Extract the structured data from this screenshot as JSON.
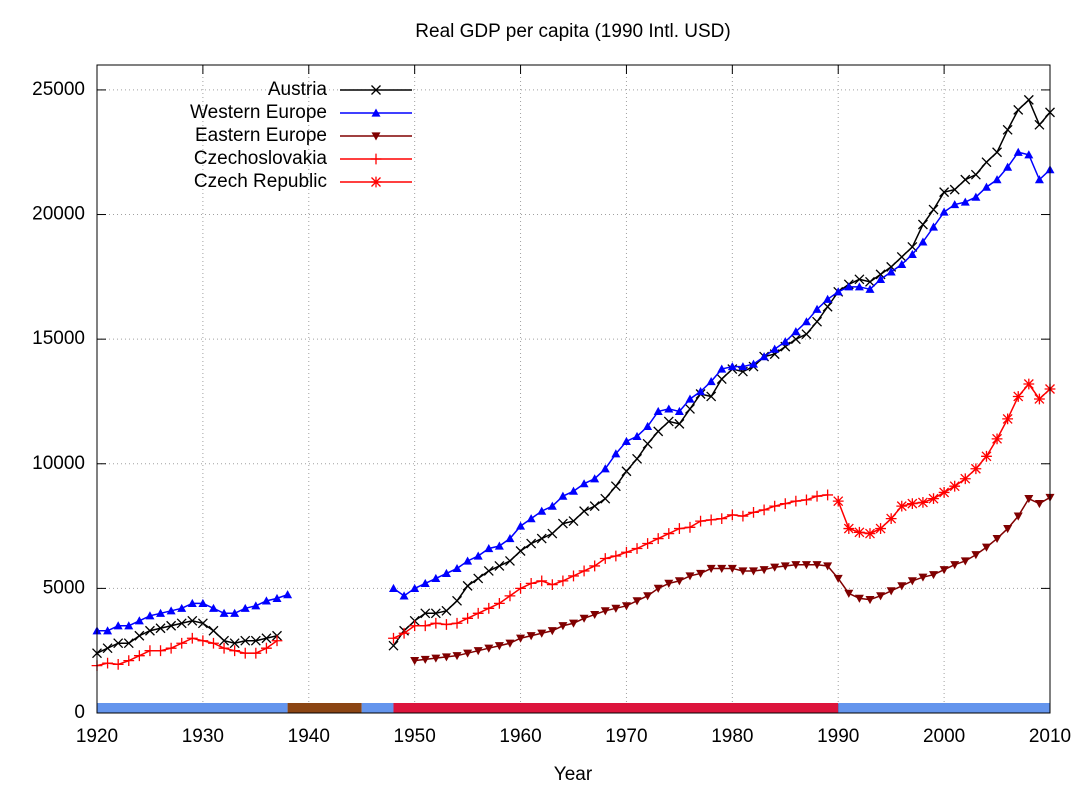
{
  "chart_data": {
    "type": "line",
    "title": "Real GDP per capita (1990 Intl. USD)",
    "x_label": "Year",
    "x": [
      1920,
      1921,
      1922,
      1923,
      1924,
      1925,
      1926,
      1927,
      1928,
      1929,
      1930,
      1931,
      1932,
      1933,
      1934,
      1935,
      1936,
      1937,
      1938,
      1939,
      1940,
      1941,
      1942,
      1943,
      1944,
      1945,
      1946,
      1947,
      1948,
      1949,
      1950,
      1951,
      1952,
      1953,
      1954,
      1955,
      1956,
      1957,
      1958,
      1959,
      1960,
      1961,
      1962,
      1963,
      1964,
      1965,
      1966,
      1967,
      1968,
      1969,
      1970,
      1971,
      1972,
      1973,
      1974,
      1975,
      1976,
      1977,
      1978,
      1979,
      1980,
      1981,
      1982,
      1983,
      1984,
      1985,
      1986,
      1987,
      1988,
      1989,
      1990,
      1991,
      1992,
      1993,
      1994,
      1995,
      1996,
      1997,
      1998,
      1999,
      2000,
      2001,
      2002,
      2003,
      2004,
      2005,
      2006,
      2007,
      2008,
      2009,
      2010
    ],
    "series": [
      {
        "name": "Austria",
        "color": "#000000",
        "marker": "x",
        "values": [
          2400,
          2600,
          2800,
          2800,
          3100,
          3300,
          3400,
          3500,
          3600,
          3700,
          3600,
          3300,
          2900,
          2800,
          2900,
          2900,
          3000,
          3100,
          null,
          null,
          null,
          null,
          null,
          null,
          null,
          null,
          null,
          null,
          2700,
          3300,
          3700,
          4000,
          4000,
          4100,
          4500,
          5100,
          5400,
          5700,
          5900,
          6100,
          6500,
          6800,
          7000,
          7200,
          7600,
          7700,
          8100,
          8300,
          8600,
          9100,
          9700,
          10200,
          10800,
          11300,
          11700,
          11600,
          12200,
          12800,
          12700,
          13400,
          13800,
          13700,
          13900,
          14300,
          14400,
          14700,
          15000,
          15200,
          15700,
          16300,
          16900,
          17200,
          17400,
          17300,
          17600,
          17900,
          18300,
          18700,
          19600,
          20200,
          20900,
          21000,
          21400,
          21600,
          22100,
          22500,
          23400,
          24200,
          24600,
          23600,
          24100
        ]
      },
      {
        "name": "Western Europe",
        "color": "#0000ff",
        "marker": "triangle",
        "values": [
          3300,
          3300,
          3500,
          3500,
          3700,
          3900,
          4000,
          4100,
          4200,
          4400,
          4400,
          4200,
          4000,
          4000,
          4200,
          4300,
          4500,
          4600,
          4750,
          null,
          null,
          null,
          null,
          null,
          null,
          null,
          null,
          null,
          5000,
          4700,
          5000,
          5200,
          5400,
          5600,
          5800,
          6100,
          6300,
          6600,
          6700,
          7000,
          7500,
          7800,
          8100,
          8300,
          8700,
          8900,
          9200,
          9400,
          9800,
          10400,
          10900,
          11100,
          11500,
          12100,
          12200,
          12100,
          12600,
          12900,
          13300,
          13800,
          13900,
          13900,
          14000,
          14300,
          14600,
          14900,
          15300,
          15700,
          16200,
          16600,
          16900,
          17100,
          17100,
          17000,
          17400,
          17700,
          18000,
          18400,
          18900,
          19500,
          20100,
          20400,
          20500,
          20700,
          21100,
          21400,
          21900,
          22500,
          22400,
          21400,
          21800
        ]
      },
      {
        "name": "Eastern Europe",
        "color": "#800000",
        "marker": "triangle-down",
        "values": [
          null,
          null,
          null,
          null,
          null,
          null,
          null,
          null,
          null,
          null,
          null,
          null,
          null,
          null,
          null,
          null,
          null,
          null,
          null,
          null,
          null,
          null,
          null,
          null,
          null,
          null,
          null,
          null,
          null,
          null,
          2100,
          2150,
          2200,
          2250,
          2300,
          2400,
          2500,
          2600,
          2700,
          2800,
          3000,
          3100,
          3200,
          3300,
          3500,
          3600,
          3800,
          3950,
          4100,
          4200,
          4300,
          4500,
          4700,
          5000,
          5200,
          5300,
          5500,
          5600,
          5800,
          5800,
          5800,
          5700,
          5700,
          5750,
          5850,
          5900,
          5950,
          5950,
          5950,
          5900,
          5400,
          4800,
          4600,
          4550,
          4700,
          4900,
          5100,
          5300,
          5450,
          5550,
          5750,
          5950,
          6100,
          6350,
          6650,
          7000,
          7400,
          7900,
          8600,
          8400,
          8650
        ]
      },
      {
        "name": "Czechoslovakia",
        "color": "#ff0000",
        "marker": "plus",
        "values": [
          1900,
          2000,
          1950,
          2100,
          2300,
          2500,
          2500,
          2600,
          2800,
          3000,
          2900,
          2800,
          2600,
          2500,
          2400,
          2400,
          2600,
          2900,
          null,
          null,
          null,
          null,
          null,
          null,
          null,
          null,
          null,
          null,
          3000,
          3200,
          3500,
          3500,
          3600,
          3550,
          3600,
          3800,
          4000,
          4200,
          4400,
          4700,
          5000,
          5200,
          5300,
          5150,
          5300,
          5500,
          5700,
          5900,
          6200,
          6300,
          6450,
          6600,
          6800,
          7000,
          7200,
          7400,
          7450,
          7700,
          7750,
          7800,
          7950,
          7900,
          8050,
          8150,
          8300,
          8400,
          8500,
          8550,
          8700,
          8750,
          null,
          null,
          null,
          null,
          null,
          null,
          null,
          null,
          null,
          null,
          null,
          null,
          null,
          null,
          null,
          null,
          null,
          null,
          null,
          null,
          null
        ]
      },
      {
        "name": "Czech Republic",
        "color": "#ff0000",
        "marker": "star",
        "values": [
          null,
          null,
          null,
          null,
          null,
          null,
          null,
          null,
          null,
          null,
          null,
          null,
          null,
          null,
          null,
          null,
          null,
          null,
          null,
          null,
          null,
          null,
          null,
          null,
          null,
          null,
          null,
          null,
          null,
          null,
          null,
          null,
          null,
          null,
          null,
          null,
          null,
          null,
          null,
          null,
          null,
          null,
          null,
          null,
          null,
          null,
          null,
          null,
          null,
          null,
          null,
          null,
          null,
          null,
          null,
          null,
          null,
          null,
          null,
          null,
          null,
          null,
          null,
          null,
          null,
          null,
          null,
          null,
          null,
          null,
          8500,
          7400,
          7250,
          7200,
          7400,
          7800,
          8300,
          8400,
          8450,
          8600,
          8850,
          9100,
          9400,
          9800,
          10300,
          11000,
          11800,
          12700,
          13200,
          12600,
          13000
        ]
      }
    ],
    "periods": [
      {
        "start": 1920,
        "end": 1938,
        "color": "#6495ed"
      },
      {
        "start": 1938,
        "end": 1945,
        "color": "#8b4513"
      },
      {
        "start": 1945,
        "end": 1948,
        "color": "#6495ed"
      },
      {
        "start": 1948,
        "end": 1990,
        "color": "#dc143c"
      },
      {
        "start": 1990,
        "end": 2010,
        "color": "#6495ed"
      }
    ],
    "xlim": [
      1920,
      2010
    ],
    "xticks": [
      1920,
      1930,
      1940,
      1950,
      1960,
      1970,
      1980,
      1990,
      2000,
      2010
    ],
    "ylim": [
      0,
      26000
    ],
    "yticks": [
      0,
      5000,
      10000,
      15000,
      20000,
      25000
    ],
    "grid": true,
    "legend": "top-left"
  }
}
